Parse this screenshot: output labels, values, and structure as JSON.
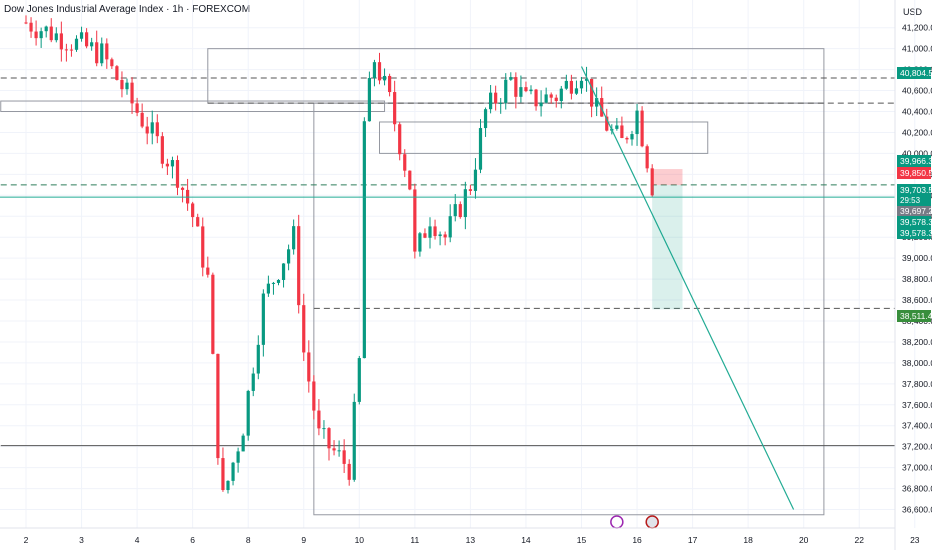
{
  "header": {
    "title": "Dow Jones Industrial Average Index · 1h · FOREXCOM",
    "currency": "USD"
  },
  "colors": {
    "up": "#089981",
    "down": "#f23645",
    "grid": "#f0f3fa",
    "axis_text": "#131722",
    "trendline": "#22ab94",
    "box_stroke": "#9598a1"
  },
  "chart_data": {
    "type": "candlestick",
    "y_axis": {
      "min": 36500,
      "max": 41350,
      "ticks": [
        36600,
        36800,
        37000,
        37200,
        37400,
        37600,
        37800,
        38000,
        38200,
        38400,
        38600,
        38800,
        39000,
        39200,
        39400,
        39600,
        39800,
        40000,
        40200,
        40400,
        40600,
        40800,
        41000,
        41200
      ],
      "tick_labels": [
        "36,600.0",
        "36,800.0",
        "37,000.0",
        "37,200.0",
        "37,400.0",
        "37,600.0",
        "37,800.0",
        "38,000.0",
        "38,200.0",
        "38,400.0",
        "38,600.0",
        "38,800.0",
        "39,000.0",
        "39,200.0",
        "39,400.0",
        "39,600.0",
        "39,800.0",
        "40,000.0",
        "40,200.0",
        "40,400.0",
        "40,600.0",
        "40,800.0",
        "41,000.0",
        "41,200.0"
      ]
    },
    "x_axis": {
      "labels": [
        "2",
        "3",
        "4",
        "6",
        "8",
        "9",
        "10",
        "11",
        "13",
        "14",
        "15",
        "16",
        "17",
        "18",
        "20",
        "22",
        "23"
      ],
      "bar_index": [
        0,
        11,
        22,
        33,
        44,
        55,
        66,
        77,
        88,
        99,
        110,
        121,
        132,
        143,
        154,
        165,
        176
      ]
    },
    "price_tags": [
      {
        "value": 40804.5,
        "label": "40,804.5",
        "color": "#089981"
      },
      {
        "value": 39966.3,
        "label": "39,966.3",
        "color": "#089981"
      },
      {
        "value": 39850.5,
        "label": "39,850.5",
        "color": "#f23645"
      },
      {
        "value": 39703.5,
        "label": "39,703.5",
        "color": "#089981"
      },
      {
        "value": 39697.2,
        "label": "39,697.2",
        "color": "#787b86"
      },
      {
        "value": 39578.3,
        "label": "39,578.3",
        "color": "#089981"
      },
      {
        "value": 39578.3,
        "label": "39,578.3",
        "color": "#089981"
      },
      {
        "value": 38511.4,
        "label": "38,511.4",
        "color": "#388e3c"
      }
    ],
    "timer": "29:53",
    "key_points": [
      {
        "bar": 0,
        "price": 41250
      },
      {
        "bar": 15,
        "price": 40950
      },
      {
        "bar": 22,
        "price": 40400
      },
      {
        "bar": 30,
        "price": 39800
      },
      {
        "bar": 33,
        "price": 39400
      },
      {
        "bar": 36,
        "price": 38800
      },
      {
        "bar": 38,
        "price": 37200
      },
      {
        "bar": 39,
        "price": 36700
      },
      {
        "bar": 43,
        "price": 37400
      },
      {
        "bar": 47,
        "price": 38600
      },
      {
        "bar": 53,
        "price": 39200
      },
      {
        "bar": 55,
        "price": 38100
      },
      {
        "bar": 58,
        "price": 37300
      },
      {
        "bar": 64,
        "price": 37000
      },
      {
        "bar": 66,
        "price": 38000
      },
      {
        "bar": 67,
        "price": 40300
      },
      {
        "bar": 69,
        "price": 40900
      },
      {
        "bar": 72,
        "price": 40500
      },
      {
        "bar": 76,
        "price": 39700
      },
      {
        "bar": 77,
        "price": 39000
      },
      {
        "bar": 80,
        "price": 39400
      },
      {
        "bar": 83,
        "price": 39200
      },
      {
        "bar": 88,
        "price": 39700
      },
      {
        "bar": 91,
        "price": 40400
      },
      {
        "bar": 96,
        "price": 40700
      },
      {
        "bar": 99,
        "price": 40500
      },
      {
        "bar": 105,
        "price": 40550
      },
      {
        "bar": 110,
        "price": 40800
      },
      {
        "bar": 113,
        "price": 40400
      },
      {
        "bar": 116,
        "price": 40200
      },
      {
        "bar": 118,
        "price": 40100
      },
      {
        "bar": 121,
        "price": 40400
      },
      {
        "bar": 123,
        "price": 39950
      },
      {
        "bar": 124,
        "price": 39700
      }
    ],
    "horizontal_lines": [
      40720,
      40480,
      39700,
      38520,
      37210
    ],
    "boxes": [
      {
        "bar1": 36,
        "bar2": 158,
        "p1": 41000,
        "p2": 40480
      },
      {
        "bar1": -5,
        "bar2": 71,
        "p1": 40500,
        "p2": 40400
      },
      {
        "bar1": 70,
        "bar2": 135,
        "p1": 40300,
        "p2": 40000
      },
      {
        "bar1": 57,
        "bar2": 158,
        "p1": 40480,
        "p2": 36550
      }
    ],
    "trendline": {
      "bar1": 110,
      "price1": 40830,
      "bar2": 152,
      "price2": 36600
    },
    "position": {
      "bar1": 124,
      "bar2": 130,
      "entry": 39697.2,
      "stop": 39850.5,
      "target": 38511.4
    }
  }
}
